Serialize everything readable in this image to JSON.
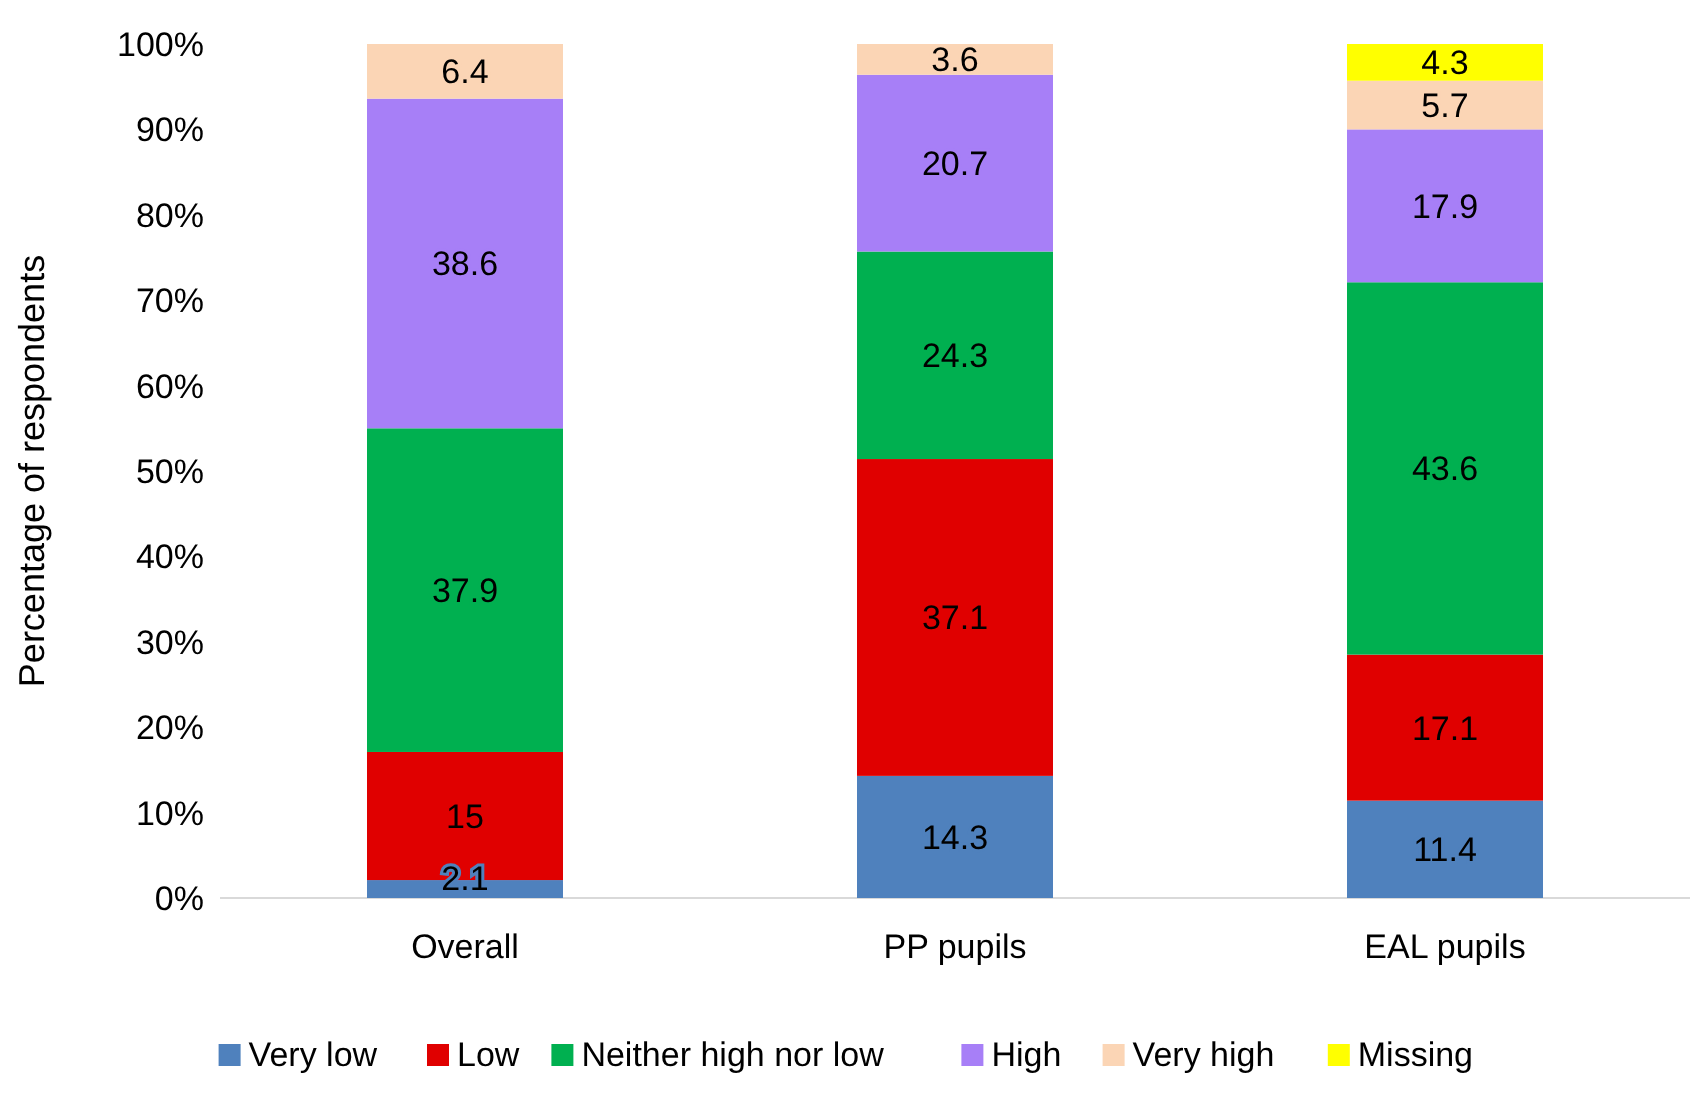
{
  "chart_data": {
    "type": "bar",
    "stacked": true,
    "ylabel": "Percentage of respondents",
    "categories": [
      "Overall",
      "PP pupils",
      "EAL pupils"
    ],
    "series": [
      {
        "name": "Very low",
        "color": "#4f81bd",
        "values": [
          2.1,
          14.3,
          11.4
        ]
      },
      {
        "name": "Low",
        "color": "#e00000",
        "values": [
          15,
          37.1,
          17.1
        ]
      },
      {
        "name": "Neither high nor low",
        "color": "#00b050",
        "values": [
          37.9,
          24.3,
          43.6
        ]
      },
      {
        "name": "High",
        "color": "#a77ff7",
        "values": [
          38.6,
          20.7,
          17.9
        ]
      },
      {
        "name": "Very high",
        "color": "#fbd5b5",
        "values": [
          6.4,
          3.6,
          5.7
        ]
      },
      {
        "name": "Missing",
        "color": "#ffff00",
        "values": [
          null,
          null,
          4.3
        ]
      }
    ],
    "ylim": [
      0,
      100
    ],
    "yticks": [
      {
        "value": 0,
        "label": "0%"
      },
      {
        "value": 10,
        "label": "10%"
      },
      {
        "value": 20,
        "label": "20%"
      },
      {
        "value": 30,
        "label": "30%"
      },
      {
        "value": 40,
        "label": "40%"
      },
      {
        "value": 50,
        "label": "50%"
      },
      {
        "value": 60,
        "label": "60%"
      },
      {
        "value": 70,
        "label": "70%"
      },
      {
        "value": 80,
        "label": "80%"
      },
      {
        "value": 90,
        "label": "90%"
      },
      {
        "value": 100,
        "label": "100%"
      }
    ],
    "data_labels": true,
    "grid": false,
    "legend": "bottom"
  }
}
